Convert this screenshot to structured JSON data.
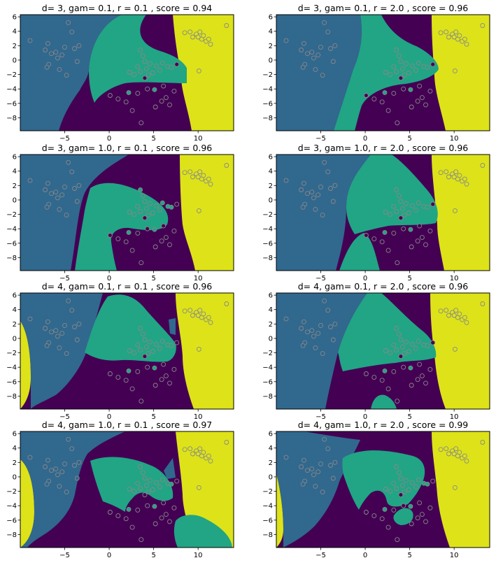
{
  "figure": {
    "background": "#ffffff"
  },
  "colors": {
    "region0": "#440154",
    "region1": "#31688e",
    "region2": "#21a585",
    "region3": "#dde318",
    "point_edge": "#888888"
  },
  "x_ticks": [
    {
      "value": -5,
      "label": "−5"
    },
    {
      "value": 0,
      "label": "0"
    },
    {
      "value": 5,
      "label": "5"
    },
    {
      "value": 10,
      "label": "10"
    }
  ],
  "y_ticks": [
    {
      "value": 6,
      "label": "6"
    },
    {
      "value": 4,
      "label": "4"
    },
    {
      "value": 2,
      "label": "2"
    },
    {
      "value": 0,
      "label": "0"
    },
    {
      "value": -2,
      "label": "−2"
    },
    {
      "value": -4,
      "label": "−4"
    },
    {
      "value": -6,
      "label": "−6"
    },
    {
      "value": -8,
      "label": "−8"
    }
  ],
  "chart_data": [
    {
      "type": "scatter",
      "title": "d= 3, gam= 0.1, r = 0.1 , score = 0.94",
      "xlim": [
        -10,
        14
      ],
      "ylim": [
        -9.8,
        6.3
      ],
      "grid": false
    },
    {
      "type": "scatter",
      "title": "d= 3, gam= 0.1, r = 2.0 , score = 0.96",
      "xlim": [
        -10,
        14
      ],
      "ylim": [
        -9.8,
        6.3
      ],
      "grid": false
    },
    {
      "type": "scatter",
      "title": "d= 3, gam= 1.0, r = 0.1 , score = 0.96",
      "xlim": [
        -10,
        14
      ],
      "ylim": [
        -9.8,
        6.3
      ],
      "grid": false
    },
    {
      "type": "scatter",
      "title": "d= 3, gam= 1.0, r = 2.0 , score = 0.96",
      "xlim": [
        -10,
        14
      ],
      "ylim": [
        -9.8,
        6.3
      ],
      "grid": false
    },
    {
      "type": "scatter",
      "title": "d= 4, gam= 0.1, r = 0.1 , score = 0.96",
      "xlim": [
        -10,
        14
      ],
      "ylim": [
        -9.8,
        6.3
      ],
      "grid": false
    },
    {
      "type": "scatter",
      "title": "d= 4, gam= 0.1, r = 2.0 , score = 0.96",
      "xlim": [
        -10,
        14
      ],
      "ylim": [
        -9.8,
        6.3
      ],
      "grid": false
    },
    {
      "type": "scatter",
      "title": "d= 4, gam= 1.0, r = 0.1 , score = 0.97",
      "xlim": [
        -10,
        14
      ],
      "ylim": [
        -9.8,
        6.3
      ],
      "grid": false
    },
    {
      "type": "scatter",
      "title": "d= 4, gam= 1.0, r = 2.0 , score = 0.99",
      "xlim": [
        -10,
        14
      ],
      "ylim": [
        -9.8,
        6.3
      ],
      "grid": false
    }
  ],
  "points": [
    {
      "x": -8.9,
      "y": 2.7,
      "c": 1
    },
    {
      "x": -7.2,
      "y": 1.4,
      "c": 1
    },
    {
      "x": -6.9,
      "y": 2.3,
      "c": 1
    },
    {
      "x": -6.5,
      "y": 0.9,
      "c": 1
    },
    {
      "x": -6.0,
      "y": 1.1,
      "c": 1
    },
    {
      "x": -5.8,
      "y": 0.3,
      "c": 1
    },
    {
      "x": -5.6,
      "y": -1.3,
      "c": 1
    },
    {
      "x": -5.3,
      "y": 0.7,
      "c": 1
    },
    {
      "x": -5.0,
      "y": 1.8,
      "c": 1
    },
    {
      "x": -4.6,
      "y": 5.2,
      "c": 1
    },
    {
      "x": -4.2,
      "y": 3.9,
      "c": 1
    },
    {
      "x": -3.9,
      "y": 1.6,
      "c": 1
    },
    {
      "x": -3.6,
      "y": -0.2,
      "c": 1
    },
    {
      "x": -3.4,
      "y": 2.0,
      "c": 1
    },
    {
      "x": -6.8,
      "y": -0.6,
      "c": 1
    },
    {
      "x": -4.8,
      "y": -2.1,
      "c": 1
    },
    {
      "x": -7.0,
      "y": -1.0,
      "c": 1
    },
    {
      "x": 3.5,
      "y": 1.4,
      "c": 2
    },
    {
      "x": 3.8,
      "y": 0.6,
      "c": 2
    },
    {
      "x": 4.0,
      "y": -0.2,
      "c": 2
    },
    {
      "x": 3.2,
      "y": -0.9,
      "c": 2
    },
    {
      "x": 2.8,
      "y": -2.0,
      "c": 2
    },
    {
      "x": 3.5,
      "y": -1.6,
      "c": 2
    },
    {
      "x": 4.2,
      "y": -1.2,
      "c": 2
    },
    {
      "x": 4.6,
      "y": -0.5,
      "c": 2
    },
    {
      "x": 4.9,
      "y": -1.8,
      "c": 2
    },
    {
      "x": 5.3,
      "y": -0.8,
      "c": 2
    },
    {
      "x": 5.7,
      "y": -1.4,
      "c": 2
    },
    {
      "x": 6.0,
      "y": -0.4,
      "c": 2
    },
    {
      "x": 6.6,
      "y": -0.9,
      "c": 2
    },
    {
      "x": 7.0,
      "y": -1.0,
      "c": 2
    },
    {
      "x": 2.3,
      "y": -1.7,
      "c": 2
    },
    {
      "x": 2.2,
      "y": -4.5,
      "c": 2
    },
    {
      "x": 5.1,
      "y": -4.1,
      "c": 2
    },
    {
      "x": 4.4,
      "y": -2.1,
      "c": 2
    },
    {
      "x": 0.1,
      "y": -4.9,
      "c": 0
    },
    {
      "x": 1.0,
      "y": -5.4,
      "c": 0
    },
    {
      "x": 1.9,
      "y": -5.8,
      "c": 0
    },
    {
      "x": 2.6,
      "y": -7.0,
      "c": 0
    },
    {
      "x": 3.6,
      "y": -8.7,
      "c": 0
    },
    {
      "x": 4.3,
      "y": -4.0,
      "c": 0
    },
    {
      "x": 5.2,
      "y": -6.5,
      "c": 0
    },
    {
      "x": 5.9,
      "y": -5.7,
      "c": 0
    },
    {
      "x": 6.4,
      "y": -5.2,
      "c": 0
    },
    {
      "x": 6.8,
      "y": -6.2,
      "c": 0
    },
    {
      "x": 7.3,
      "y": -4.3,
      "c": 0
    },
    {
      "x": 6.1,
      "y": -3.6,
      "c": 0
    },
    {
      "x": 4.0,
      "y": -2.5,
      "c": 0
    },
    {
      "x": 7.6,
      "y": -0.6,
      "c": 0
    },
    {
      "x": 3.2,
      "y": -4.6,
      "c": 0
    },
    {
      "x": 8.5,
      "y": 3.8,
      "c": 3
    },
    {
      "x": 9.1,
      "y": 3.9,
      "c": 3
    },
    {
      "x": 9.4,
      "y": 3.2,
      "c": 3
    },
    {
      "x": 9.8,
      "y": 3.6,
      "c": 3
    },
    {
      "x": 10.2,
      "y": 3.9,
      "c": 3
    },
    {
      "x": 10.4,
      "y": 2.9,
      "c": 3
    },
    {
      "x": 10.6,
      "y": 3.4,
      "c": 3
    },
    {
      "x": 10.9,
      "y": 2.6,
      "c": 3
    },
    {
      "x": 11.2,
      "y": 2.9,
      "c": 3
    },
    {
      "x": 11.4,
      "y": 2.2,
      "c": 3
    },
    {
      "x": 10.0,
      "y": 3.2,
      "c": 3
    },
    {
      "x": 13.2,
      "y": 4.8,
      "c": 3
    },
    {
      "x": 10.1,
      "y": -1.5,
      "c": 3
    }
  ]
}
